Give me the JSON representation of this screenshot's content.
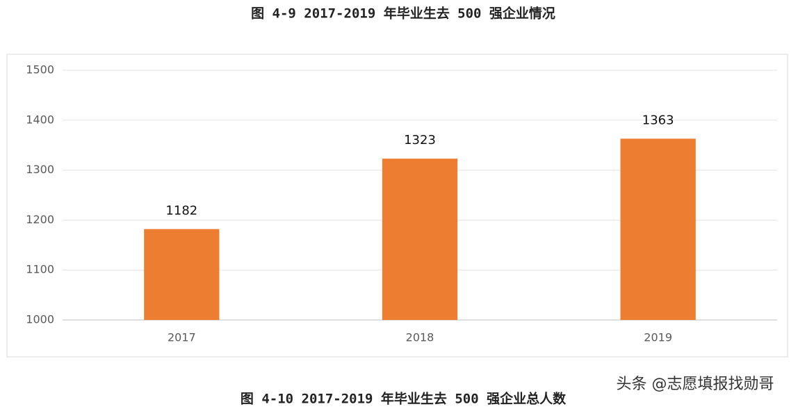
{
  "chart_data": {
    "type": "bar",
    "title": "图 4-9 2017-2019 年毕业生去 500 强企业情况",
    "caption": "图 4-10 2017-2019 年毕业生去 500 强企业总人数",
    "watermark": "头条 @志愿填报找勋哥",
    "categories": [
      "2017",
      "2018",
      "2019"
    ],
    "values": [
      1182,
      1323,
      1363
    ],
    "color": "#ed7d31",
    "ylim": [
      1000,
      1500
    ],
    "yticks": [
      1000,
      1100,
      1200,
      1300,
      1400,
      1500
    ],
    "grid": true
  }
}
